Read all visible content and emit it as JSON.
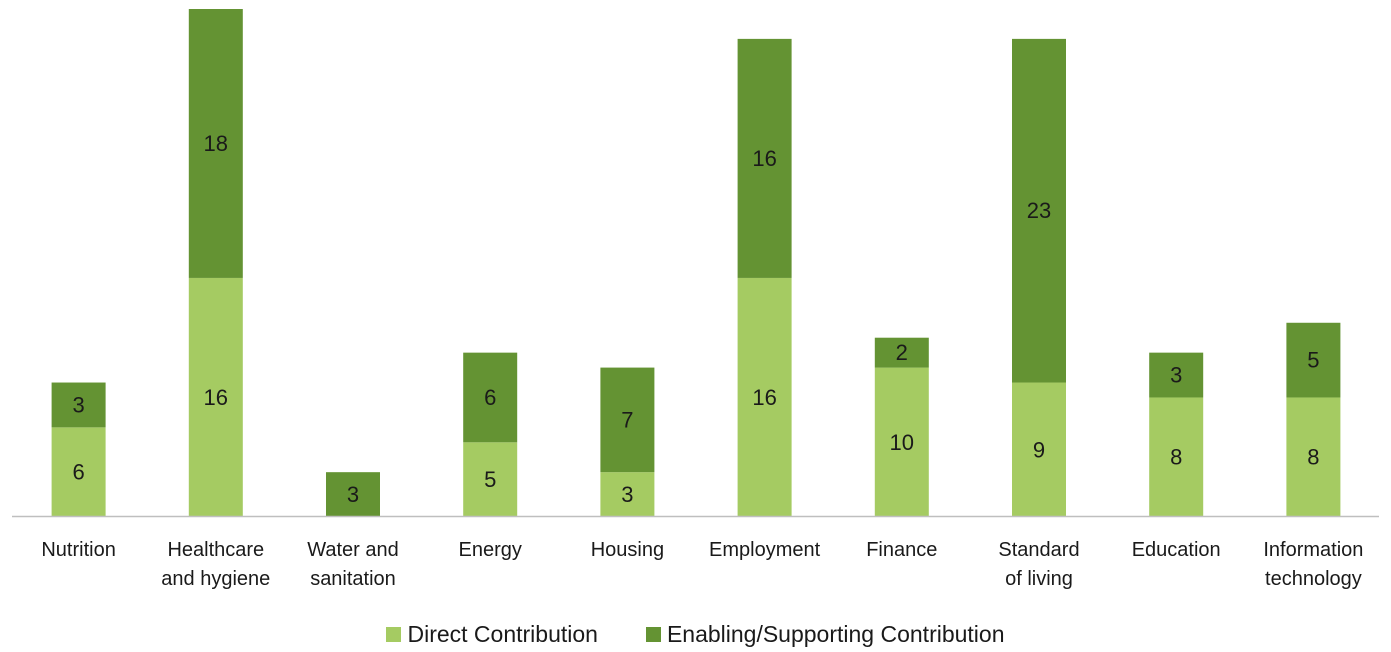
{
  "chart_data": {
    "type": "bar",
    "stacked": true,
    "categories": [
      [
        "Nutrition"
      ],
      [
        "Healthcare",
        "and hygiene"
      ],
      [
        "Water and",
        "sanitation"
      ],
      [
        "Energy"
      ],
      [
        "Housing"
      ],
      [
        "Employment"
      ],
      [
        "Finance"
      ],
      [
        "Standard",
        "of living"
      ],
      [
        "Education"
      ],
      [
        "Information",
        "technology"
      ]
    ],
    "series": [
      {
        "name": "Direct Contribution",
        "color": "#a5cb62",
        "values": [
          6,
          16,
          0,
          5,
          3,
          16,
          10,
          9,
          8,
          8
        ]
      },
      {
        "name": "Enabling/Supporting Contribution",
        "color": "#649333",
        "values": [
          3,
          18,
          3,
          6,
          7,
          16,
          2,
          23,
          3,
          5
        ]
      }
    ],
    "title": "",
    "xlabel": "",
    "ylabel": "",
    "ylim": [
      0,
      34
    ],
    "grid": false,
    "legend_position": "bottom"
  }
}
